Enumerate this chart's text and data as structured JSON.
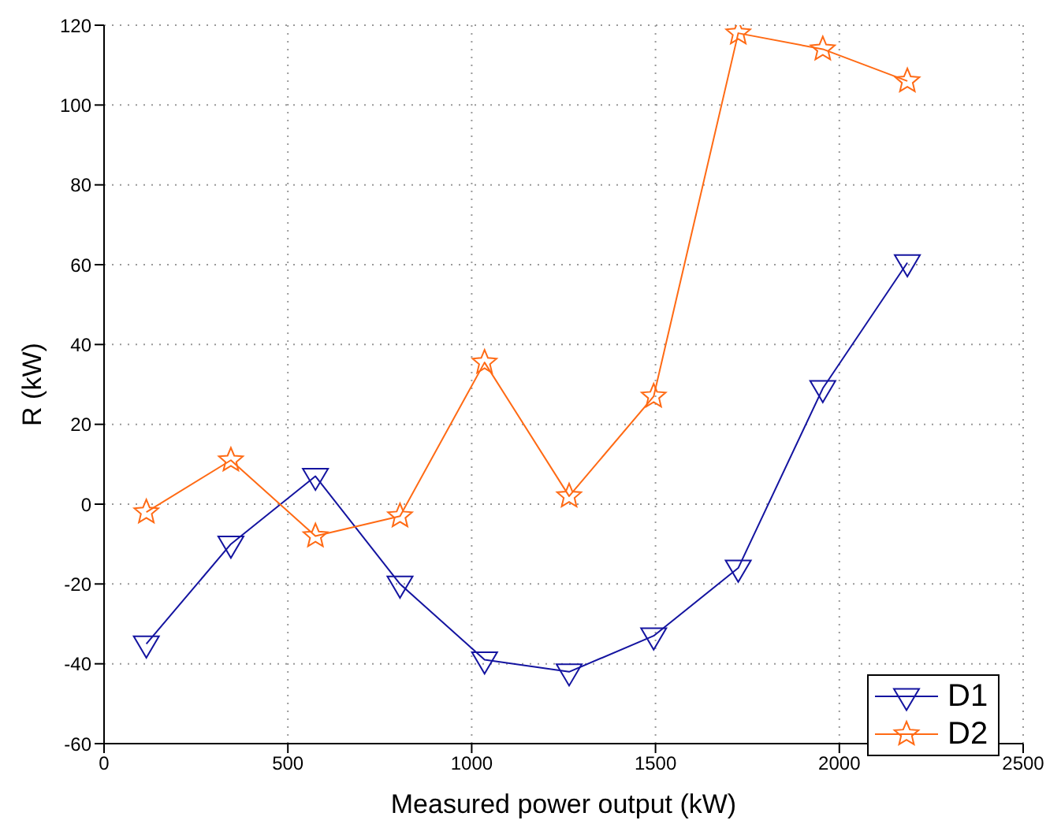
{
  "chart_data": {
    "type": "line",
    "xlabel": "Measured power output (kW)",
    "ylabel": "R (kW)",
    "x": [
      115,
      345,
      575,
      805,
      1035,
      1265,
      1495,
      1725,
      1955,
      2185
    ],
    "series": [
      {
        "name": "D1",
        "color": "#1414a0",
        "marker": "triangle",
        "values": [
          -35,
          -10,
          7,
          -20,
          -39,
          -42,
          -33,
          -16,
          29,
          60.5
        ]
      },
      {
        "name": "D2",
        "color": "#ff6a14",
        "marker": "star",
        "values": [
          -2,
          11,
          -8,
          -3,
          35.5,
          2,
          27,
          118,
          114,
          106
        ]
      }
    ],
    "xlim": [
      0,
      2500
    ],
    "xticks": [
      0,
      500,
      1000,
      1500,
      2000,
      2500
    ],
    "ylim": [
      -60,
      120
    ],
    "yticks": [
      -60,
      -40,
      -20,
      0,
      20,
      40,
      60,
      80,
      100,
      120
    ],
    "grid": true,
    "legend": "bottom right",
    "line_style": "solid"
  }
}
